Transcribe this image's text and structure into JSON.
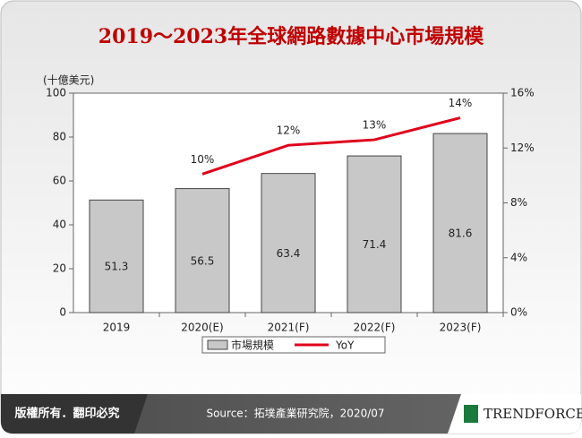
{
  "chart_data": {
    "type": "bar",
    "title": "2019～2023年全球網路數據中心市場規模",
    "y_label": "(十億美元)",
    "categories": [
      "2019",
      "2020(E)",
      "2021(F)",
      "2022(F)",
      "2023(F)"
    ],
    "series": [
      {
        "name": "市場規模",
        "type": "bar",
        "color": "#c8c8c8",
        "values": [
          51.3,
          56.5,
          63.4,
          71.4,
          81.6
        ]
      },
      {
        "name": "YoY",
        "type": "line",
        "axis": "y2",
        "color": "#e0001b",
        "values": [
          null,
          10.1,
          12.2,
          12.6,
          14.2
        ],
        "value_labels": [
          null,
          "10%",
          "12%",
          "13%",
          "14%"
        ]
      }
    ],
    "ylim": [
      0,
      100
    ],
    "yticks": [
      0,
      20,
      40,
      60,
      80,
      100
    ],
    "y2lim": [
      0,
      16
    ],
    "y2ticks": [
      {
        "value": 0,
        "label": "0%"
      },
      {
        "value": 4,
        "label": "4%"
      },
      {
        "value": 8,
        "label": "8%"
      },
      {
        "value": 12,
        "label": "12%"
      },
      {
        "value": 16,
        "label": "16%"
      }
    ],
    "legend": "bottom"
  },
  "footer": {
    "copyright": "版權所有．翻印必究",
    "source": "Source：拓墣產業研究院，2020/07",
    "logo": "TRENDFORCE"
  }
}
